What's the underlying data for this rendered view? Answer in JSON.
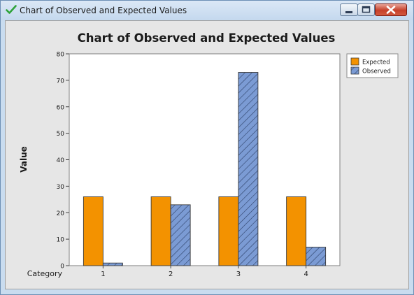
{
  "window": {
    "title": "Chart of Observed and Expected Values",
    "icon": "check-icon"
  },
  "colors": {
    "expected": "#f39200",
    "observed": "#7b9bd4",
    "hatch": "#2c3f66",
    "panel": "#e6e6e6"
  },
  "chart_data": {
    "type": "bar",
    "title": "Chart of Observed and Expected Values",
    "xlabel": "Category",
    "ylabel": "Value",
    "categories": [
      "1",
      "2",
      "3",
      "4"
    ],
    "series": [
      {
        "name": "Expected",
        "values": [
          26,
          26,
          26,
          26
        ]
      },
      {
        "name": "Observed",
        "values": [
          1,
          23,
          73,
          7
        ]
      }
    ],
    "ylim": [
      0,
      80
    ],
    "yticks": [
      0,
      10,
      20,
      30,
      40,
      50,
      60,
      70,
      80
    ],
    "legend_position": "top-right",
    "grid": false
  }
}
